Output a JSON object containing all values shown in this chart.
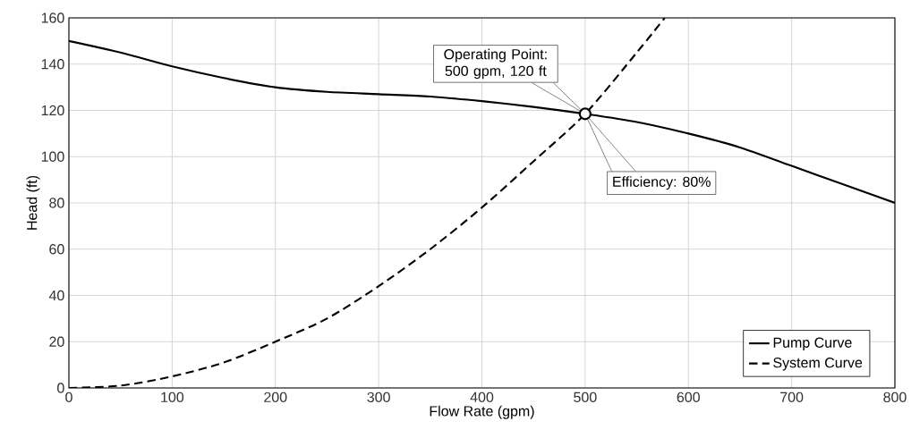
{
  "chart_data": {
    "type": "line",
    "xlabel": "Flow Rate (gpm)",
    "ylabel": "Head (ft)",
    "xlim": [
      0,
      800
    ],
    "ylim": [
      0,
      160
    ],
    "xticks": [
      0,
      100,
      200,
      300,
      400,
      500,
      600,
      700,
      800
    ],
    "yticks": [
      0,
      20,
      40,
      60,
      80,
      100,
      120,
      140,
      160
    ],
    "grid": true,
    "legend": "bottom right",
    "series": [
      {
        "name": "Pump Curve",
        "color": "#000000",
        "line_style": "solid",
        "x": [
          0,
          50,
          100,
          150,
          200,
          250,
          300,
          350,
          400,
          450,
          500,
          550,
          600,
          650,
          700,
          750,
          800
        ],
        "values": [
          150,
          145,
          139,
          134,
          130,
          128,
          127,
          126,
          124,
          121.5,
          118.5,
          115,
          110,
          104,
          96,
          88,
          80
        ]
      },
      {
        "name": "System Curve",
        "color": "#000000",
        "line_style": "dashed",
        "x": [
          0,
          50,
          100,
          150,
          200,
          250,
          300,
          350,
          400,
          450,
          500,
          550,
          577
        ],
        "values": [
          0,
          1,
          5,
          11,
          20,
          30,
          44,
          60,
          78,
          98,
          118.5,
          145,
          160
        ]
      },
      {
        "type": "scatter",
        "color": "#000000",
        "x": [
          500
        ],
        "values": [
          118.5
        ]
      }
    ],
    "annotations": [
      {
        "text": "Operating Point: 500 gpm, 120 ft",
        "x": 500,
        "y": 118.5
      },
      {
        "text": "Efficiency: 80%",
        "x": 500,
        "y": 118.5
      }
    ]
  }
}
